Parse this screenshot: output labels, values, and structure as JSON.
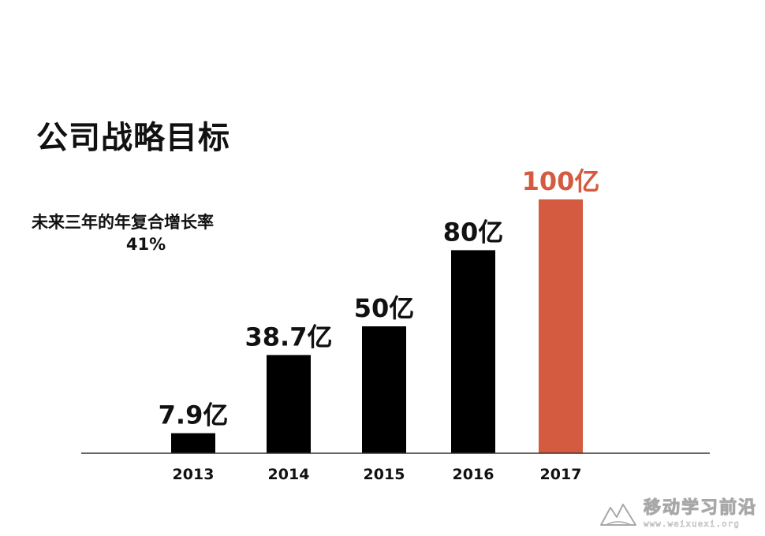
{
  "title": "公司战略目标",
  "cagr": {
    "label": "未来三年的年复合增长率",
    "value": "41%"
  },
  "chart_data": {
    "type": "bar",
    "categories": [
      "2013",
      "2014",
      "2015",
      "2016",
      "2017"
    ],
    "values": [
      7.9,
      38.7,
      50,
      80,
      100
    ],
    "data_labels": [
      "7.9亿",
      "38.7亿",
      "50亿",
      "80亿",
      "100亿"
    ],
    "unit": "亿",
    "title": "公司战略目标",
    "xlabel": "",
    "ylabel": "",
    "ylim": [
      0,
      100
    ],
    "grid": false,
    "bar_colors": [
      "#000000",
      "#000000",
      "#000000",
      "#000000",
      "#d45a40"
    ],
    "label_colors": [
      "#111111",
      "#111111",
      "#111111",
      "#111111",
      "#d45a40"
    ]
  },
  "watermark": {
    "name": "移动学习前沿",
    "url": "www.weixuexi.org",
    "icon": "mountain-logo-icon"
  }
}
